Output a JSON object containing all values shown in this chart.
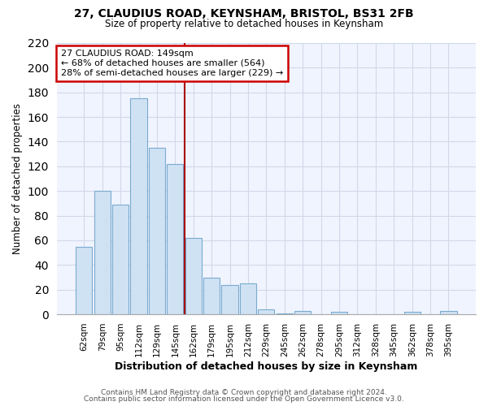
{
  "title1": "27, CLAUDIUS ROAD, KEYNSHAM, BRISTOL, BS31 2FB",
  "title2": "Size of property relative to detached houses in Keynsham",
  "xlabel": "Distribution of detached houses by size in Keynsham",
  "ylabel": "Number of detached properties",
  "bar_labels": [
    "62sqm",
    "79sqm",
    "95sqm",
    "112sqm",
    "129sqm",
    "145sqm",
    "162sqm",
    "179sqm",
    "195sqm",
    "212sqm",
    "229sqm",
    "245sqm",
    "262sqm",
    "278sqm",
    "295sqm",
    "312sqm",
    "328sqm",
    "345sqm",
    "362sqm",
    "378sqm",
    "395sqm"
  ],
  "bar_values": [
    55,
    100,
    89,
    175,
    135,
    122,
    62,
    30,
    24,
    25,
    4,
    1,
    3,
    0,
    2,
    0,
    0,
    0,
    2,
    0,
    3
  ],
  "bar_color": "#cfe2f3",
  "bar_edge_color": "#7aabcf",
  "vline_color": "#aa0000",
  "annotation_line1": "27 CLAUDIUS ROAD: 149sqm",
  "annotation_line2": "← 68% of detached houses are smaller (564)",
  "annotation_line3": "28% of semi-detached houses are larger (229) →",
  "annotation_box_color": "#ffffff",
  "annotation_box_edge": "#cc0000",
  "ylim": [
    0,
    220
  ],
  "yticks": [
    0,
    20,
    40,
    60,
    80,
    100,
    120,
    140,
    160,
    180,
    200,
    220
  ],
  "footer1": "Contains HM Land Registry data © Crown copyright and database right 2024.",
  "footer2": "Contains public sector information licensed under the Open Government Licence v3.0.",
  "bg_color": "#ffffff",
  "plot_bg_color": "#f0f4ff",
  "grid_color": "#d0d8e8"
}
